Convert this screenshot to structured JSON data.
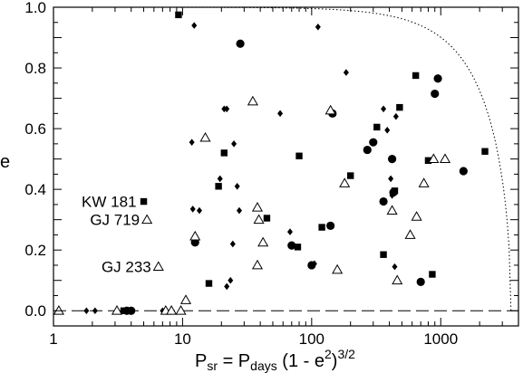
{
  "chart_data": {
    "type": "scatter",
    "xscale": "log",
    "xlim": [
      1,
      4000
    ],
    "ylim": [
      -0.05,
      1.0
    ],
    "x_ticks": [
      {
        "value": 1,
        "label": "1"
      },
      {
        "value": 10,
        "label": "10"
      },
      {
        "value": 100,
        "label": "100"
      },
      {
        "value": 1000,
        "label": "1000"
      }
    ],
    "y_ticks": [
      {
        "value": 0.0,
        "label": "0.0"
      },
      {
        "value": 0.2,
        "label": "0.2"
      },
      {
        "value": 0.4,
        "label": "0.4"
      },
      {
        "value": 0.6,
        "label": "0.6"
      },
      {
        "value": 0.8,
        "label": "0.8"
      },
      {
        "value": 1.0,
        "label": "1.0"
      }
    ],
    "xlabel": {
      "main": "P",
      "sub1": "sr",
      "mid": " = P",
      "sub2": "days",
      "rest": " (1 - e",
      "sup": "2",
      "end": ")",
      "exp": "3/2"
    },
    "ylabel": "e",
    "grid": false,
    "reference_lines": [
      {
        "style": "dashed",
        "y": 0.0
      },
      {
        "style": "dotted",
        "curve": "e_max(P)",
        "x_end": 3500
      }
    ],
    "annotations": [
      {
        "text": "KW 181",
        "x": 5.0,
        "y": 0.36,
        "marker": "square"
      },
      {
        "text": "GJ 719",
        "x": 5.3,
        "y": 0.3,
        "marker": "triangle"
      },
      {
        "text": "GJ 233",
        "x": 6.5,
        "y": 0.145,
        "marker": "triangle"
      }
    ],
    "series": [
      {
        "marker": "circle",
        "points": [
          [
            3.7,
            0.0
          ],
          [
            4.0,
            0.0
          ],
          [
            12.5,
            0.225
          ],
          [
            28,
            0.88
          ],
          [
            70,
            0.215
          ],
          [
            100,
            0.15
          ],
          [
            140,
            0.28
          ],
          [
            145,
            0.65
          ],
          [
            270,
            0.53
          ],
          [
            300,
            0.555
          ],
          [
            360,
            0.36
          ],
          [
            420,
            0.5
          ],
          [
            430,
            0.39
          ],
          [
            700,
            0.095
          ],
          [
            900,
            0.715
          ],
          [
            950,
            0.765
          ],
          [
            1500,
            0.46
          ]
        ]
      },
      {
        "marker": "square",
        "points": [
          [
            3.5,
            0.0
          ],
          [
            9.3,
            0.975
          ],
          [
            16,
            0.09
          ],
          [
            19,
            0.41
          ],
          [
            21,
            0.52
          ],
          [
            45,
            0.305
          ],
          [
            78,
            0.21
          ],
          [
            80,
            0.51
          ],
          [
            120,
            0.275
          ],
          [
            200,
            0.445
          ],
          [
            320,
            0.605
          ],
          [
            360,
            0.185
          ],
          [
            440,
            0.395
          ],
          [
            480,
            0.67
          ],
          [
            640,
            0.775
          ],
          [
            800,
            0.495
          ],
          [
            860,
            0.12
          ],
          [
            2200,
            0.525
          ]
        ]
      },
      {
        "marker": "diamond",
        "points": [
          [
            1.8,
            0.0
          ],
          [
            2.1,
            0.0
          ],
          [
            7.0,
            0.0
          ],
          [
            11.8,
            0.555
          ],
          [
            12.0,
            0.335
          ],
          [
            12.3,
            0.94
          ],
          [
            13.5,
            0.33
          ],
          [
            19.5,
            0.435
          ],
          [
            21.0,
            0.665
          ],
          [
            22.0,
            0.665
          ],
          [
            22.0,
            0.08
          ],
          [
            23.5,
            0.1
          ],
          [
            24.5,
            0.22
          ],
          [
            25,
            0.55
          ],
          [
            26.5,
            0.41
          ],
          [
            27.5,
            0.33
          ],
          [
            57,
            0.65
          ],
          [
            68,
            0.26
          ],
          [
            105,
            0.155
          ],
          [
            112,
            0.935
          ],
          [
            185,
            0.785
          ],
          [
            360,
            0.665
          ],
          [
            385,
            0.595
          ],
          [
            410,
            0.435
          ],
          [
            420,
            0.38
          ],
          [
            440,
            0.145
          ],
          [
            450,
            0.64
          ]
        ]
      },
      {
        "marker": "triangle",
        "points": [
          [
            1.1,
            0.0
          ],
          [
            3.1,
            0.0
          ],
          [
            7.4,
            0.0
          ],
          [
            8.2,
            0.0
          ],
          [
            9.7,
            0.0
          ],
          [
            10.6,
            0.035
          ],
          [
            12.5,
            0.245
          ],
          [
            15.0,
            0.57
          ],
          [
            35,
            0.69
          ],
          [
            38,
            0.34
          ],
          [
            38,
            0.15
          ],
          [
            39,
            0.3
          ],
          [
            42,
            0.225
          ],
          [
            140,
            0.66
          ],
          [
            158,
            0.135
          ],
          [
            180,
            0.42
          ],
          [
            420,
            0.33
          ],
          [
            460,
            0.1
          ],
          [
            580,
            0.25
          ],
          [
            650,
            0.31
          ],
          [
            740,
            0.42
          ],
          [
            880,
            0.5
          ],
          [
            1080,
            0.5
          ]
        ]
      }
    ]
  }
}
